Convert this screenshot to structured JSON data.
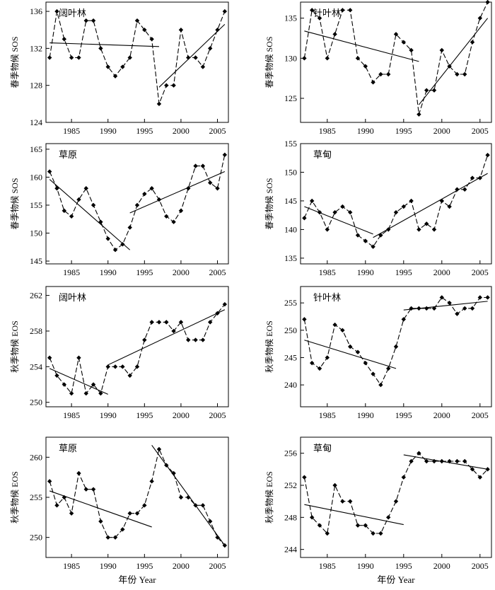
{
  "chart_data": [
    {
      "type": "line",
      "title": "阔叶林",
      "ylabel": "春季物候 SOS",
      "xlabel": "",
      "xlim": [
        1981.5,
        2006.5
      ],
      "ylim": [
        124,
        137
      ],
      "xticks": [
        1985,
        1990,
        1995,
        2000,
        2005
      ],
      "yticks": [
        124,
        128,
        132,
        136
      ],
      "x": [
        1982,
        1983,
        1984,
        1985,
        1986,
        1987,
        1988,
        1989,
        1990,
        1991,
        1992,
        1993,
        1994,
        1995,
        1996,
        1997,
        1998,
        1999,
        2000,
        2001,
        2002,
        2003,
        2004,
        2005,
        2006
      ],
      "values": [
        131,
        136,
        133,
        131,
        131,
        135,
        135,
        132,
        130,
        129,
        130,
        131,
        135,
        134,
        133,
        126,
        128,
        128,
        134,
        131,
        131,
        130,
        132,
        134,
        136
      ],
      "trend_lines": [
        {
          "x": [
            1982,
            1997
          ],
          "y": [
            132.6,
            132.2
          ]
        },
        {
          "x": [
            1997,
            2006
          ],
          "y": [
            127.8,
            134.6
          ]
        }
      ]
    },
    {
      "type": "line",
      "title": "针叶林",
      "ylabel": "春季物候 SOS",
      "xlabel": "",
      "xlim": [
        1981.5,
        2006.5
      ],
      "ylim": [
        122,
        137
      ],
      "xticks": [
        1985,
        1990,
        1995,
        2000,
        2005
      ],
      "yticks": [
        125,
        130,
        135
      ],
      "x": [
        1982,
        1983,
        1984,
        1985,
        1986,
        1987,
        1988,
        1989,
        1990,
        1991,
        1992,
        1993,
        1994,
        1995,
        1996,
        1997,
        1998,
        1999,
        2000,
        2001,
        2002,
        2003,
        2004,
        2005,
        2006
      ],
      "values": [
        130,
        136,
        135,
        130,
        133,
        136,
        136,
        130,
        129,
        127,
        128,
        128,
        133,
        132,
        131,
        123,
        126,
        126,
        131,
        129,
        128,
        128,
        132,
        135,
        137
      ],
      "trend_lines": [
        {
          "x": [
            1982,
            1997
          ],
          "y": [
            133.4,
            129.6
          ]
        },
        {
          "x": [
            1997,
            2006
          ],
          "y": [
            124.2,
            135.0
          ]
        }
      ]
    },
    {
      "type": "line",
      "title": "草原",
      "ylabel": "春季物候 SOS",
      "xlabel": "",
      "xlim": [
        1981.5,
        2006.5
      ],
      "ylim": [
        144.5,
        166
      ],
      "xticks": [
        1985,
        1990,
        1995,
        2000,
        2005
      ],
      "yticks": [
        145,
        150,
        155,
        160,
        165
      ],
      "x": [
        1982,
        1983,
        1984,
        1985,
        1986,
        1987,
        1988,
        1989,
        1990,
        1991,
        1992,
        1993,
        1994,
        1995,
        1996,
        1997,
        1998,
        1999,
        2000,
        2001,
        2002,
        2003,
        2004,
        2005,
        2006
      ],
      "values": [
        161,
        158,
        154,
        153,
        156,
        158,
        155,
        152,
        149,
        147,
        148,
        151,
        155,
        157,
        158,
        156,
        153,
        152,
        154,
        158,
        162,
        162,
        159,
        158,
        164
      ],
      "trend_lines": [
        {
          "x": [
            1982,
            1993
          ],
          "y": [
            159.6,
            147.0
          ]
        },
        {
          "x": [
            1993,
            2006
          ],
          "y": [
            153.6,
            161.0
          ]
        }
      ]
    },
    {
      "type": "line",
      "title": "草甸",
      "ylabel": "春季物候 SOS",
      "xlabel": "",
      "xlim": [
        1981.5,
        2006.5
      ],
      "ylim": [
        134,
        155
      ],
      "xticks": [
        1985,
        1990,
        1995,
        2000,
        2005
      ],
      "yticks": [
        135,
        140,
        145,
        150,
        155
      ],
      "x": [
        1982,
        1983,
        1984,
        1985,
        1986,
        1987,
        1988,
        1989,
        1990,
        1991,
        1992,
        1993,
        1994,
        1995,
        1996,
        1997,
        1998,
        1999,
        2000,
        2001,
        2002,
        2003,
        2004,
        2005,
        2006
      ],
      "values": [
        142,
        145,
        143,
        140,
        143,
        144,
        143,
        139,
        138,
        137,
        139,
        140,
        143,
        144,
        145,
        140,
        141,
        140,
        145,
        144,
        147,
        147,
        149,
        149,
        153
      ],
      "trend_lines": [
        {
          "x": [
            1982,
            1991
          ],
          "y": [
            144.0,
            139.2
          ]
        },
        {
          "x": [
            1991,
            2006
          ],
          "y": [
            138.6,
            149.8
          ]
        }
      ]
    },
    {
      "type": "line",
      "title": "阔叶林",
      "ylabel": "秋季物候 EOS",
      "xlabel": "",
      "xlim": [
        1981.5,
        2006.5
      ],
      "ylim": [
        249.5,
        263
      ],
      "xticks": [
        1985,
        1990,
        1995,
        2000,
        2005
      ],
      "yticks": [
        250,
        254,
        258,
        262
      ],
      "x": [
        1982,
        1983,
        1984,
        1985,
        1986,
        1987,
        1988,
        1989,
        1990,
        1991,
        1992,
        1993,
        1994,
        1995,
        1996,
        1997,
        1998,
        1999,
        2000,
        2001,
        2002,
        2003,
        2004,
        2005,
        2006
      ],
      "values": [
        255,
        253,
        252,
        251,
        255,
        251,
        252,
        251,
        254,
        254,
        254,
        253,
        254,
        257,
        259,
        259,
        259,
        258,
        259,
        257,
        257,
        257,
        259,
        260,
        261
      ],
      "trend_lines": [
        {
          "x": [
            1982,
            1990
          ],
          "y": [
            253.8,
            250.9
          ]
        },
        {
          "x": [
            1990,
            2006
          ],
          "y": [
            254.2,
            260.4
          ]
        }
      ]
    },
    {
      "type": "line",
      "title": "针叶林",
      "ylabel": "秋季物候 EOS",
      "xlabel": "",
      "xlim": [
        1981.5,
        2006.5
      ],
      "ylim": [
        236,
        258
      ],
      "xticks": [
        1985,
        1990,
        1995,
        2000,
        2005
      ],
      "yticks": [
        240,
        245,
        250,
        255
      ],
      "x": [
        1982,
        1983,
        1984,
        1985,
        1986,
        1987,
        1988,
        1989,
        1990,
        1991,
        1992,
        1993,
        1994,
        1995,
        1996,
        1997,
        1998,
        1999,
        2000,
        2001,
        2002,
        2003,
        2004,
        2005,
        2006
      ],
      "values": [
        252,
        244,
        243,
        245,
        251,
        250,
        247,
        246,
        244,
        242,
        240,
        243,
        247,
        252,
        254,
        254,
        254,
        254,
        256,
        255,
        253,
        254,
        254,
        256,
        256
      ],
      "trend_lines": [
        {
          "x": [
            1982,
            1994
          ],
          "y": [
            248.2,
            243.0
          ]
        },
        {
          "x": [
            1995,
            2006
          ],
          "y": [
            253.7,
            255.3
          ]
        }
      ]
    },
    {
      "type": "line",
      "title": "草原",
      "ylabel": "秋季物候 EOS",
      "xlabel": "年份 Year",
      "xlim": [
        1981.5,
        2006.5
      ],
      "ylim": [
        247.5,
        262.5
      ],
      "xticks": [
        1985,
        1990,
        1995,
        2000,
        2005
      ],
      "yticks": [
        250,
        255,
        260
      ],
      "x": [
        1982,
        1983,
        1984,
        1985,
        1986,
        1987,
        1988,
        1989,
        1990,
        1991,
        1992,
        1993,
        1994,
        1995,
        1996,
        1997,
        1998,
        1999,
        2000,
        2001,
        2002,
        2003,
        2004,
        2005,
        2006
      ],
      "values": [
        257,
        254,
        255,
        253,
        258,
        256,
        256,
        252,
        250,
        250,
        251,
        253,
        253,
        254,
        257,
        261,
        259,
        258,
        255,
        255,
        254,
        254,
        252,
        250,
        249
      ],
      "trend_lines": [
        {
          "x": [
            1982,
            1996
          ],
          "y": [
            255.8,
            251.3
          ]
        },
        {
          "x": [
            1996,
            2006
          ],
          "y": [
            261.5,
            249.0
          ]
        }
      ]
    },
    {
      "type": "line",
      "title": "草甸",
      "ylabel": "秋季物候 EOS",
      "xlabel": "年份 Year",
      "xlim": [
        1981.5,
        2006.5
      ],
      "ylim": [
        243,
        258
      ],
      "xticks": [
        1985,
        1990,
        1995,
        2000,
        2005
      ],
      "yticks": [
        244,
        248,
        252,
        256
      ],
      "x": [
        1982,
        1983,
        1984,
        1985,
        1986,
        1987,
        1988,
        1989,
        1990,
        1991,
        1992,
        1993,
        1994,
        1995,
        1996,
        1997,
        1998,
        1999,
        2000,
        2001,
        2002,
        2003,
        2004,
        2005,
        2006
      ],
      "values": [
        253,
        248,
        247,
        246,
        252,
        250,
        250,
        247,
        247,
        246,
        246,
        248,
        250,
        253,
        255,
        256,
        255,
        255,
        255,
        255,
        255,
        255,
        254,
        253,
        254
      ],
      "trend_lines": [
        {
          "x": [
            1982,
            1995
          ],
          "y": [
            249.6,
            247.1
          ]
        },
        {
          "x": [
            1995,
            2006
          ],
          "y": [
            255.8,
            254.0
          ]
        }
      ]
    }
  ]
}
